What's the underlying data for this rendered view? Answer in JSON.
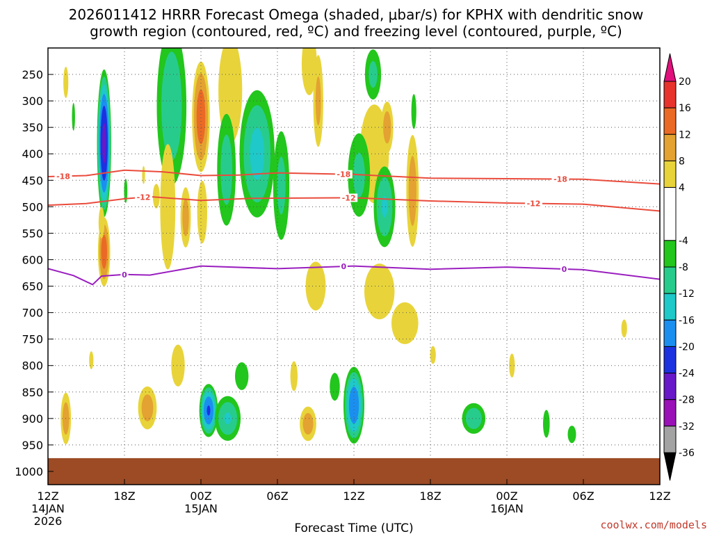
{
  "chart_data": {
    "type": "heatmap",
    "title_line1": "2026011412 HRRR Forecast Omega (shaded, μbar/s) for KPHX with dendritic snow",
    "title_line2": "growth region (contoured, red, ºC) and freezing level (contoured, purple, ºC)",
    "xlabel": "Forecast Time (UTC)",
    "credit": "coolwx.com/models",
    "x_range_hours": [
      0,
      48
    ],
    "x_ticks": [
      {
        "hour": 0,
        "label": "12Z",
        "sub1": "14JAN",
        "sub2": "2026"
      },
      {
        "hour": 6,
        "label": "18Z"
      },
      {
        "hour": 12,
        "label": "00Z",
        "sub1": "15JAN"
      },
      {
        "hour": 18,
        "label": "06Z"
      },
      {
        "hour": 24,
        "label": "12Z"
      },
      {
        "hour": 30,
        "label": "18Z"
      },
      {
        "hour": 36,
        "label": "00Z",
        "sub1": "16JAN"
      },
      {
        "hour": 42,
        "label": "06Z"
      },
      {
        "hour": 48,
        "label": "12Z"
      }
    ],
    "y_axis": "pressure (mb)",
    "y_range": [
      200,
      1025
    ],
    "y_ticks": [
      250,
      300,
      350,
      400,
      450,
      500,
      550,
      600,
      650,
      700,
      750,
      800,
      850,
      900,
      950,
      1000
    ],
    "ground_level_mb": 975,
    "colorbar": {
      "ticks": [
        20,
        16,
        12,
        8,
        4,
        -4,
        -8,
        -12,
        -16,
        -20,
        -24,
        -28,
        -32,
        -36
      ],
      "bins": [
        {
          "lo": 20,
          "hi": 24,
          "color": "#e0107c"
        },
        {
          "lo": 16,
          "hi": 20,
          "color": "#e8332c"
        },
        {
          "lo": 12,
          "hi": 16,
          "color": "#ea6a25"
        },
        {
          "lo": 8,
          "hi": 12,
          "color": "#e3a231"
        },
        {
          "lo": 4,
          "hi": 8,
          "color": "#e8d43a"
        },
        {
          "lo": -4,
          "hi": 4,
          "color": "#ffffff"
        },
        {
          "lo": -8,
          "hi": -4,
          "color": "#22c61c"
        },
        {
          "lo": -12,
          "hi": -8,
          "color": "#27cc8c"
        },
        {
          "lo": -16,
          "hi": -12,
          "color": "#1fc8c9"
        },
        {
          "lo": -20,
          "hi": -16,
          "color": "#1b8ff0"
        },
        {
          "lo": -24,
          "hi": -20,
          "color": "#1c32e0"
        },
        {
          "lo": -28,
          "hi": -24,
          "color": "#6818c8"
        },
        {
          "lo": -32,
          "hi": -28,
          "color": "#9a11b8"
        },
        {
          "lo": -36,
          "hi": -32,
          "color": "#a3a3a3"
        },
        {
          "lo": -40,
          "hi": -36,
          "color": "#000000"
        }
      ]
    },
    "omega_features": [
      {
        "t": 1.4,
        "p": 265,
        "dt": 0.3,
        "dp": 45,
        "peak": 6
      },
      {
        "t": 4.4,
        "p": 380,
        "dt": 0.6,
        "dp": 150,
        "peak": -25
      },
      {
        "t": 2.0,
        "p": 330,
        "dt": 0.18,
        "dp": 40,
        "peak": -6
      },
      {
        "t": 4.4,
        "p": 585,
        "dt": 0.55,
        "dp": 75,
        "peak": 14
      },
      {
        "t": 4.2,
        "p": 530,
        "dt": 0.35,
        "dp": 45,
        "peak": 6
      },
      {
        "t": 6.1,
        "p": 470,
        "dt": 0.2,
        "dp": 35,
        "peak": -6
      },
      {
        "t": 7.5,
        "p": 440,
        "dt": 0.2,
        "dp": 30,
        "peak": 5
      },
      {
        "t": 9.7,
        "p": 310,
        "dt": 1.4,
        "dp": 180,
        "peak": -11
      },
      {
        "t": 9.4,
        "p": 500,
        "dt": 0.9,
        "dp": 180,
        "peak": 6
      },
      {
        "t": 10.8,
        "p": 520,
        "dt": 0.5,
        "dp": 70,
        "peak": 10
      },
      {
        "t": 12.0,
        "p": 330,
        "dt": 0.8,
        "dp": 120,
        "peak": 14
      },
      {
        "t": 12.1,
        "p": 510,
        "dt": 0.6,
        "dp": 90,
        "peak": 6
      },
      {
        "t": 8.5,
        "p": 480,
        "dt": 0.7,
        "dp": 60,
        "peak": 4
      },
      {
        "t": 14.3,
        "p": 280,
        "dt": 1.3,
        "dp": 140,
        "peak": 7
      },
      {
        "t": 14.0,
        "p": 430,
        "dt": 0.9,
        "dp": 130,
        "peak": -10
      },
      {
        "t": 16.4,
        "p": 400,
        "dt": 1.6,
        "dp": 140,
        "peak": -13
      },
      {
        "t": 18.3,
        "p": 460,
        "dt": 0.8,
        "dp": 130,
        "peak": -9
      },
      {
        "t": 20.5,
        "p": 230,
        "dt": 0.9,
        "dp": 90,
        "peak": 6
      },
      {
        "t": 21.2,
        "p": 300,
        "dt": 0.5,
        "dp": 110,
        "peak": 9
      },
      {
        "t": 25.6,
        "p": 400,
        "dt": 1.6,
        "dp": 130,
        "peak": 7
      },
      {
        "t": 26.6,
        "p": 350,
        "dt": 0.6,
        "dp": 60,
        "peak": 10
      },
      {
        "t": 26.4,
        "p": 500,
        "dt": 1.0,
        "dp": 90,
        "peak": -12
      },
      {
        "t": 24.4,
        "p": 440,
        "dt": 1.1,
        "dp": 100,
        "peak": -9
      },
      {
        "t": 28.6,
        "p": 470,
        "dt": 0.6,
        "dp": 130,
        "peak": 10
      },
      {
        "t": 25.5,
        "p": 250,
        "dt": 0.8,
        "dp": 60,
        "peak": -9
      },
      {
        "t": 28.7,
        "p": 320,
        "dt": 0.3,
        "dp": 50,
        "peak": -6
      },
      {
        "t": 21.0,
        "p": 650,
        "dt": 1.2,
        "dp": 70,
        "peak": 6
      },
      {
        "t": 26.0,
        "p": 660,
        "dt": 1.8,
        "dp": 80,
        "peak": 6
      },
      {
        "t": 28.0,
        "p": 720,
        "dt": 1.6,
        "dp": 60,
        "peak": 6
      },
      {
        "t": 1.4,
        "p": 900,
        "dt": 0.5,
        "dp": 60,
        "peak": 10
      },
      {
        "t": 3.4,
        "p": 790,
        "dt": 0.3,
        "dp": 30,
        "peak": 5
      },
      {
        "t": 7.8,
        "p": 880,
        "dt": 0.9,
        "dp": 50,
        "peak": 10
      },
      {
        "t": 10.2,
        "p": 800,
        "dt": 0.8,
        "dp": 60,
        "peak": 6
      },
      {
        "t": 12.6,
        "p": 885,
        "dt": 0.8,
        "dp": 55,
        "peak": -20
      },
      {
        "t": 14.1,
        "p": 900,
        "dt": 1.2,
        "dp": 50,
        "peak": -12
      },
      {
        "t": 15.2,
        "p": 820,
        "dt": 0.8,
        "dp": 40,
        "peak": -6
      },
      {
        "t": 20.4,
        "p": 910,
        "dt": 0.8,
        "dp": 40,
        "peak": 10
      },
      {
        "t": 19.3,
        "p": 820,
        "dt": 0.5,
        "dp": 50,
        "peak": 5
      },
      {
        "t": 24.0,
        "p": 875,
        "dt": 0.9,
        "dp": 80,
        "peak": -19
      },
      {
        "t": 22.5,
        "p": 840,
        "dt": 0.6,
        "dp": 40,
        "peak": -6
      },
      {
        "t": 30.2,
        "p": 780,
        "dt": 0.4,
        "dp": 30,
        "peak": 5
      },
      {
        "t": 33.4,
        "p": 900,
        "dt": 1.1,
        "dp": 35,
        "peak": -11
      },
      {
        "t": 36.4,
        "p": 800,
        "dt": 0.4,
        "dp": 40,
        "peak": 5
      },
      {
        "t": 39.1,
        "p": 910,
        "dt": 0.4,
        "dp": 40,
        "peak": -6
      },
      {
        "t": 41.1,
        "p": 930,
        "dt": 0.5,
        "dp": 25,
        "peak": -6
      },
      {
        "t": 45.2,
        "p": 730,
        "dt": 0.4,
        "dp": 30,
        "peak": 5
      }
    ],
    "contours": [
      {
        "name": "dendritic-snow-growth -18C",
        "color": "#ea4b3c",
        "label": "-18",
        "label_hours": [
          1.2,
          23.2,
          40.2
        ],
        "points": [
          [
            0,
            443
          ],
          [
            3,
            441
          ],
          [
            4.5,
            436
          ],
          [
            6,
            431
          ],
          [
            9,
            434
          ],
          [
            12,
            441
          ],
          [
            15,
            440
          ],
          [
            18,
            436
          ],
          [
            24,
            439
          ],
          [
            30,
            446
          ],
          [
            36,
            447
          ],
          [
            42,
            448
          ],
          [
            48,
            457
          ]
        ]
      },
      {
        "name": "dendritic-snow-growth -12C",
        "color": "#ea4b3c",
        "label": "-12",
        "label_hours": [
          7.5,
          23.6,
          38.1
        ],
        "points": [
          [
            0,
            497
          ],
          [
            3,
            494
          ],
          [
            6,
            485
          ],
          [
            8,
            481
          ],
          [
            12,
            488
          ],
          [
            16,
            484
          ],
          [
            24,
            483
          ],
          [
            28,
            487
          ],
          [
            30,
            489
          ],
          [
            36,
            493
          ],
          [
            42,
            495
          ],
          [
            48,
            508
          ]
        ]
      },
      {
        "name": "freezing-level 0C",
        "color": "#9a1ebf",
        "label": "0",
        "label_hours": [
          6.0,
          23.2,
          40.5
        ],
        "points": [
          [
            0,
            617
          ],
          [
            2,
            630
          ],
          [
            3.5,
            647
          ],
          [
            4.2,
            631
          ],
          [
            6,
            628
          ],
          [
            8,
            629
          ],
          [
            12,
            612
          ],
          [
            18,
            617
          ],
          [
            24,
            612
          ],
          [
            30,
            618
          ],
          [
            36,
            614
          ],
          [
            42,
            619
          ],
          [
            48,
            637
          ]
        ]
      }
    ]
  }
}
